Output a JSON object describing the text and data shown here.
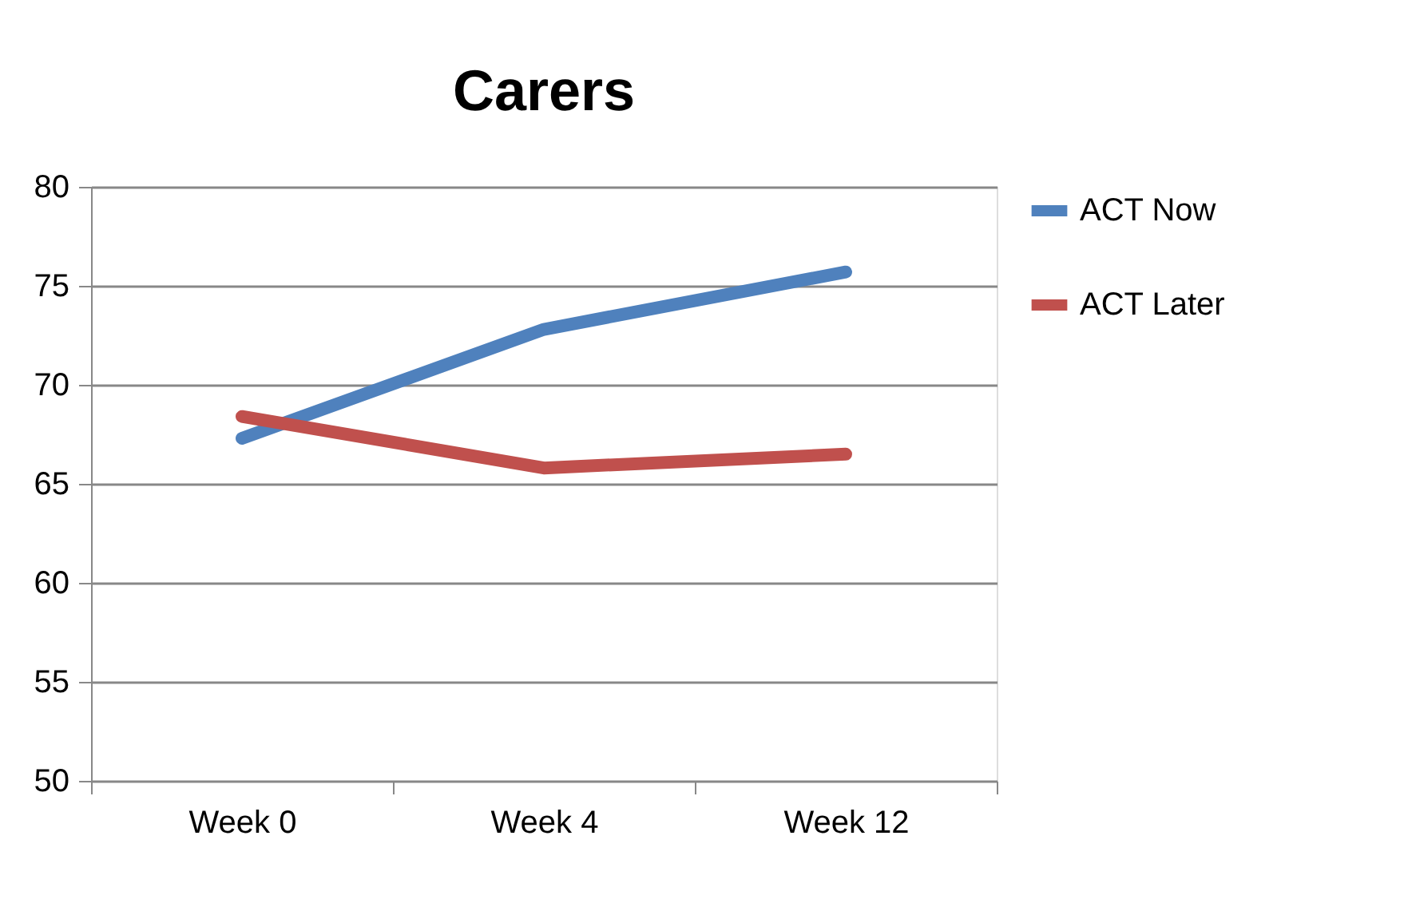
{
  "chart_data": {
    "type": "line",
    "title": "Carers",
    "categories": [
      "Week 0",
      "Week 4",
      "Week 12"
    ],
    "series": [
      {
        "name": "ACT Now",
        "color": "#4f81bd",
        "values": [
          67.3,
          72.8,
          75.7
        ]
      },
      {
        "name": "ACT Later",
        "color": "#c0504d",
        "values": [
          68.4,
          65.8,
          66.5
        ]
      }
    ],
    "ylim": [
      50,
      80
    ],
    "yticks": [
      50,
      55,
      60,
      65,
      70,
      75,
      80
    ],
    "grid": "y",
    "legend": "right",
    "marker": "none",
    "line_style": "solid"
  }
}
